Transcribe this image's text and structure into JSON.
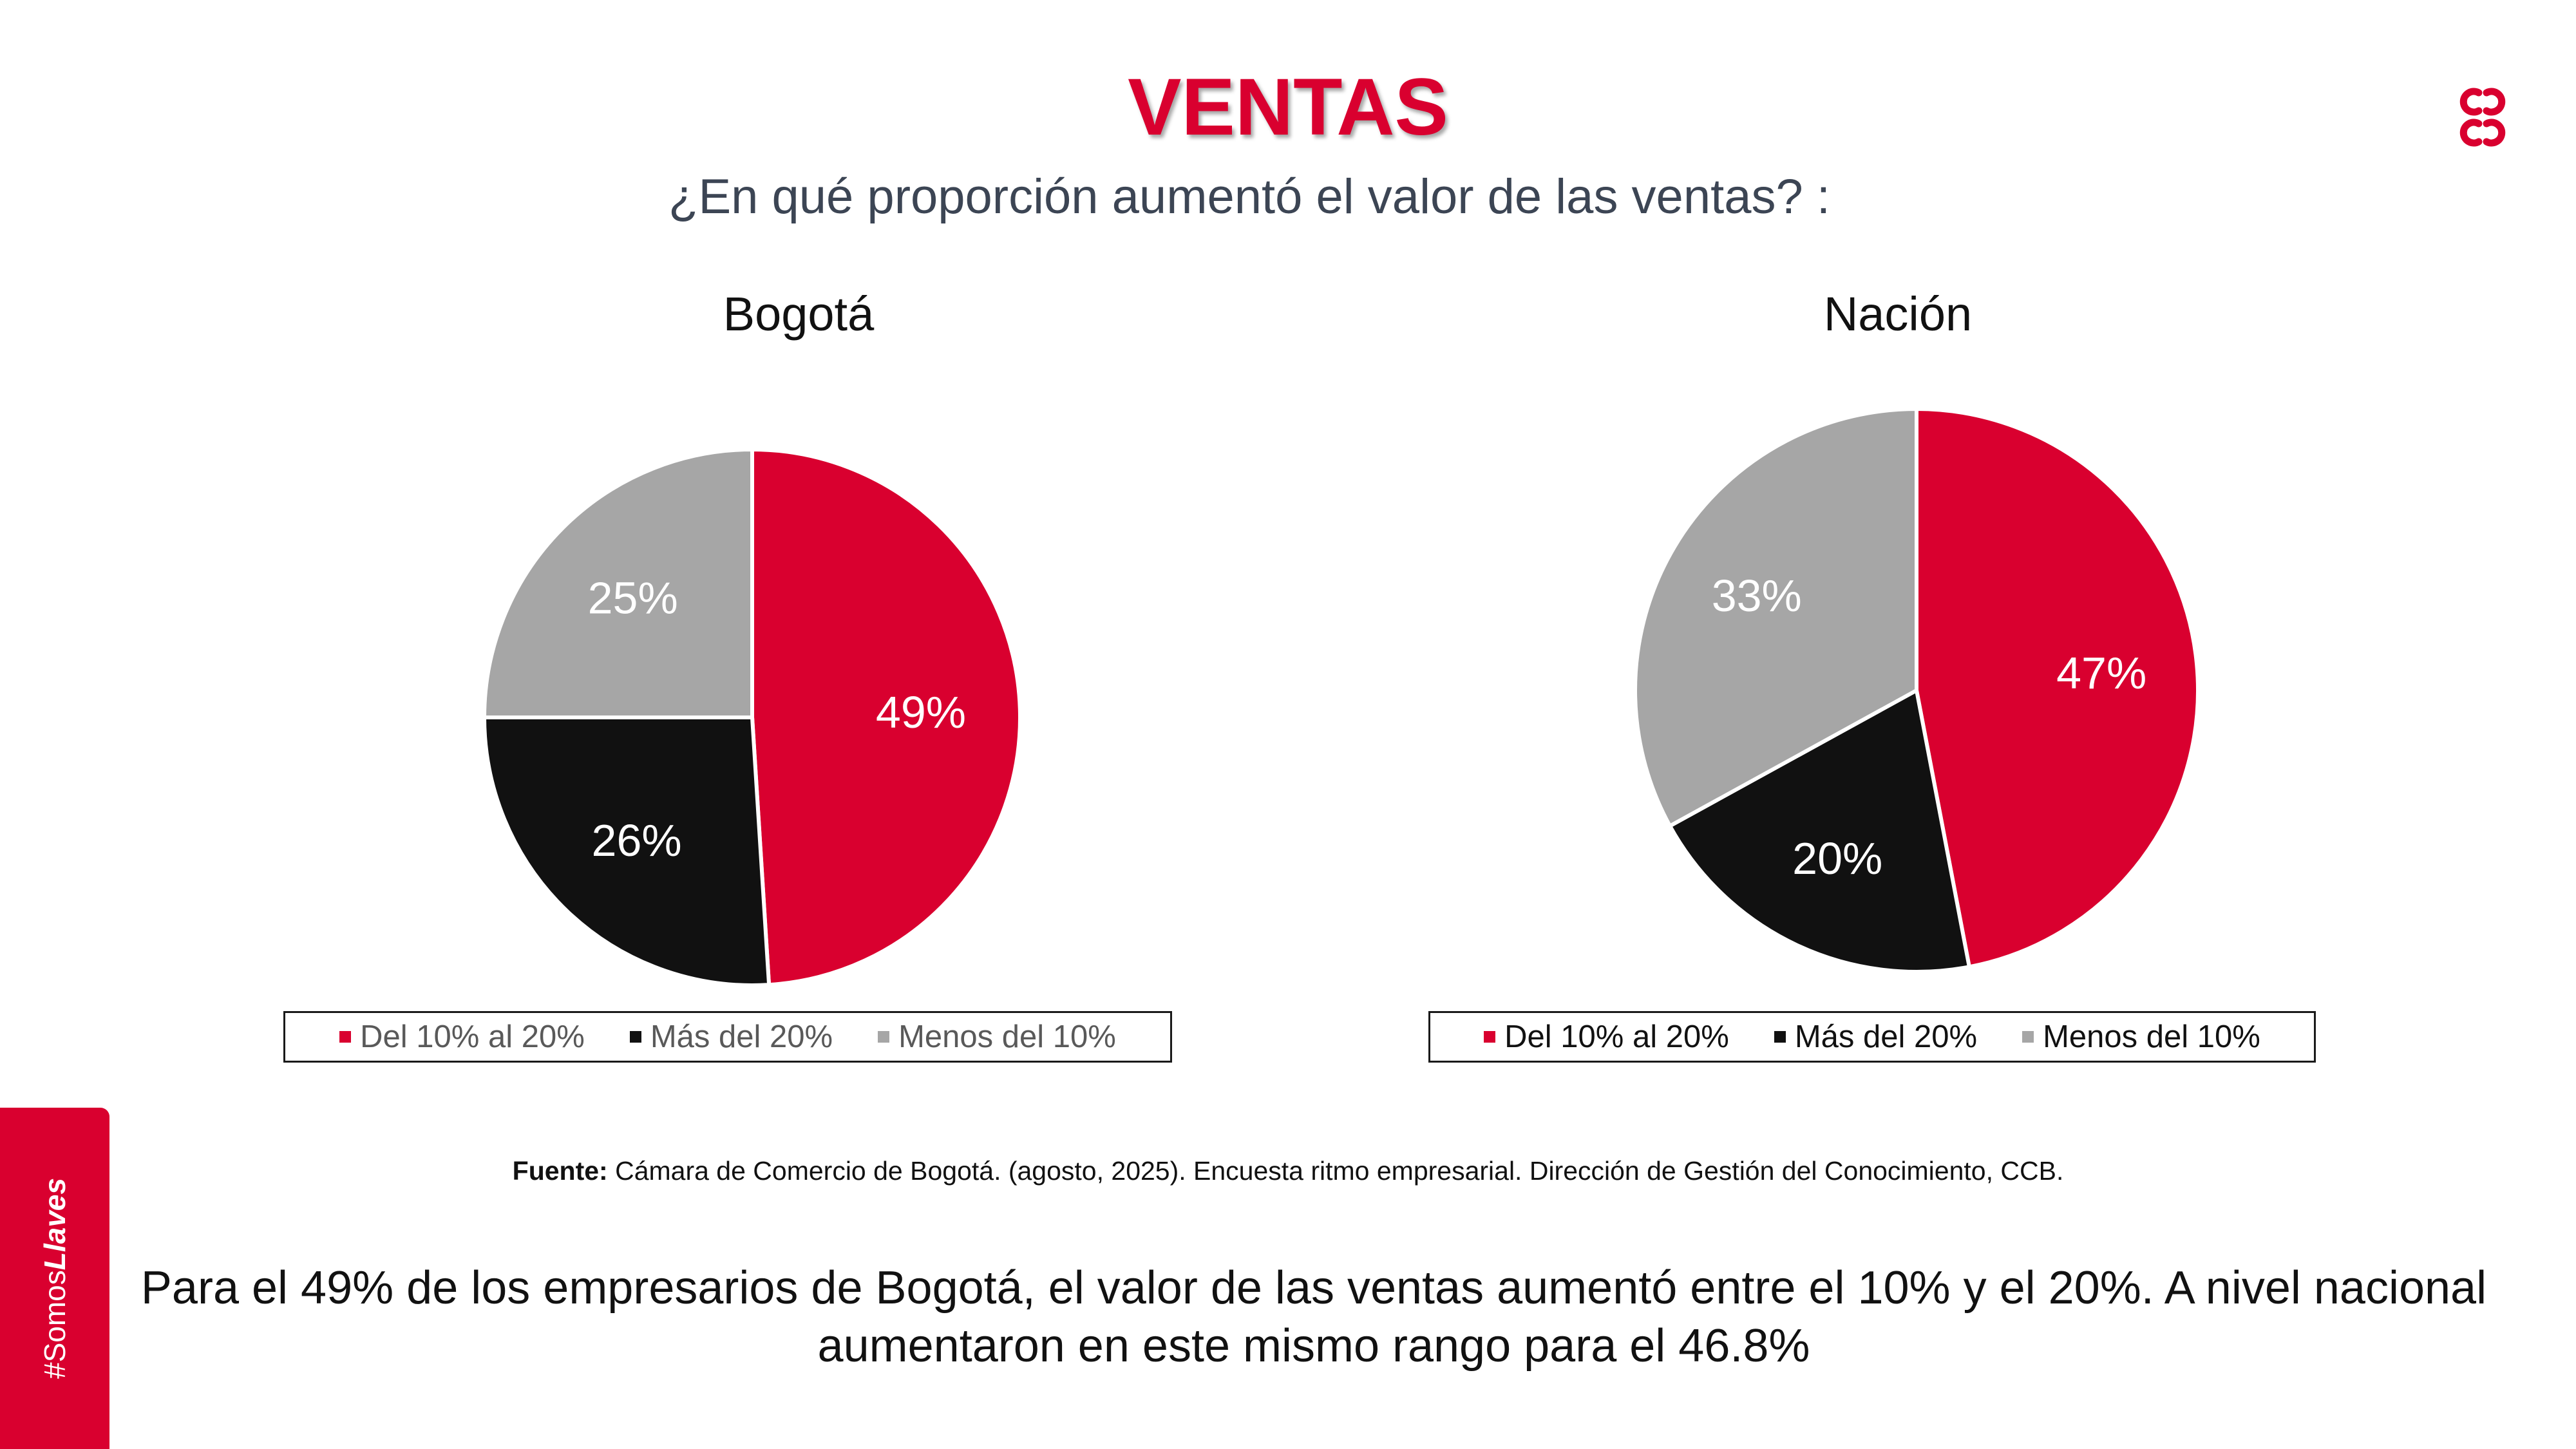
{
  "header": {
    "title": "VENTAS",
    "subtitle": "¿En qué proporción aumentó el valor de las ventas? :"
  },
  "colors": {
    "accent": "#d9002f",
    "black_slice": "#111111",
    "gray_slice": "#a6a6a6",
    "legend_text_left": "#595959",
    "legend_text_right": "#111111"
  },
  "chart_data": [
    {
      "type": "pie",
      "title": "Bogotá",
      "categories": [
        "Del 10% al 20%",
        "Más del 20%",
        "Menos del 10%"
      ],
      "values": [
        49,
        26,
        25
      ],
      "labels": [
        "49%",
        "26%",
        "25%"
      ],
      "colors": [
        "#d9002f",
        "#111111",
        "#a6a6a6"
      ],
      "legend": "bottom"
    },
    {
      "type": "pie",
      "title": "Nación",
      "categories": [
        "Del 10% al 20%",
        "Más del 20%",
        "Menos del 10%"
      ],
      "values": [
        47,
        20,
        33
      ],
      "labels": [
        "47%",
        "20%",
        "33%"
      ],
      "colors": [
        "#d9002f",
        "#111111",
        "#a6a6a6"
      ],
      "legend": "bottom"
    }
  ],
  "source": {
    "prefix": "Fuente:",
    "text": " Cámara de Comercio de Bogotá. (agosto, 2025). Encuesta ritmo empresarial. Dirección de Gestión del Conocimiento, CCB."
  },
  "conclusion": {
    "line1": "Para el 49% de los empresarios de Bogotá, el valor de las ventas aumentó entre el 10% y el 20%. A nivel nacional",
    "line2": "aumentaron en este mismo rango para el 46.8%"
  },
  "side_tab": {
    "prefix": "#Somos",
    "bold": "Llaves"
  },
  "logo": {
    "icon": "ccb-logo-icon"
  }
}
